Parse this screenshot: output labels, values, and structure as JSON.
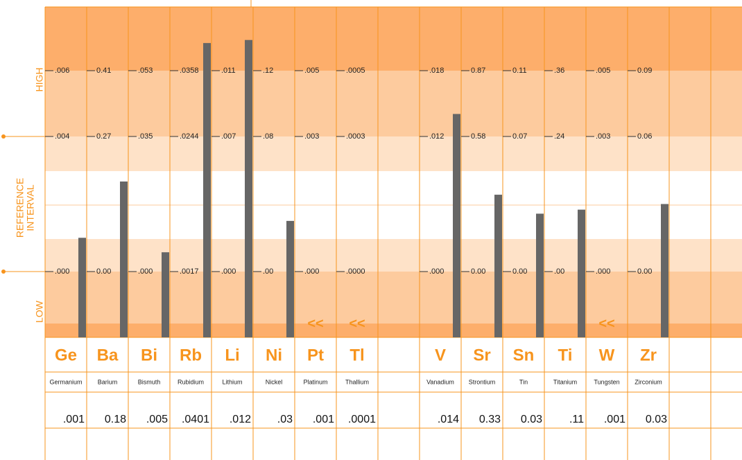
{
  "labels": {
    "high": "HIGH",
    "reference": "REFERENCE",
    "interval": "INTERVAL",
    "low": "LOW"
  },
  "elements": [
    {
      "symbol": "Ge",
      "name": "Germanium",
      "result": ".001",
      "low": ".000",
      "upper": ".004",
      "high": ".006"
    },
    {
      "symbol": "Ba",
      "name": "Barium",
      "result": "0.18",
      "low": "0.00",
      "upper": "0.27",
      "high": "0.41"
    },
    {
      "symbol": "Bi",
      "name": "Bismuth",
      "result": ".005",
      "low": ".000",
      "upper": ".035",
      "high": ".053"
    },
    {
      "symbol": "Rb",
      "name": "Rubidium",
      "result": ".0401",
      "low": ".0017",
      "upper": ".0244",
      "high": ".0358"
    },
    {
      "symbol": "Li",
      "name": "Lithium",
      "result": ".012",
      "low": ".000",
      "upper": ".007",
      "high": ".011"
    },
    {
      "symbol": "Ni",
      "name": "Nickel",
      "result": ".03",
      "low": ".00",
      "upper": ".08",
      "high": ".12"
    },
    {
      "symbol": "Pt",
      "name": "Platinum",
      "result": ".001",
      "low": ".000",
      "upper": ".003",
      "high": ".005",
      "flag": "<<"
    },
    {
      "symbol": "Tl",
      "name": "Thallium",
      "result": ".0001",
      "low": ".0000",
      "upper": ".0003",
      "high": ".0005",
      "flag": "<<"
    },
    null,
    {
      "symbol": "V",
      "name": "Vanadium",
      "result": ".014",
      "low": ".000",
      "upper": ".012",
      "high": ".018"
    },
    {
      "symbol": "Sr",
      "name": "Strontium",
      "result": "0.33",
      "low": "0.00",
      "upper": "0.58",
      "high": "0.87"
    },
    {
      "symbol": "Sn",
      "name": "Tin",
      "result": "0.03",
      "low": "0.00",
      "upper": "0.07",
      "high": "0.11"
    },
    {
      "symbol": "Ti",
      "name": "Titanium",
      "result": ".11",
      "low": ".00",
      "upper": ".24",
      "high": ".36"
    },
    {
      "symbol": "W",
      "name": "Tungsten",
      "result": ".001",
      "low": ".000",
      "upper": ".003",
      "high": ".005",
      "flag": "<<"
    },
    {
      "symbol": "Zr",
      "name": "Zirconium",
      "result": "0.03",
      "low": "0.00",
      "upper": "0.06",
      "high": "0.09"
    },
    null,
    null
  ]
}
